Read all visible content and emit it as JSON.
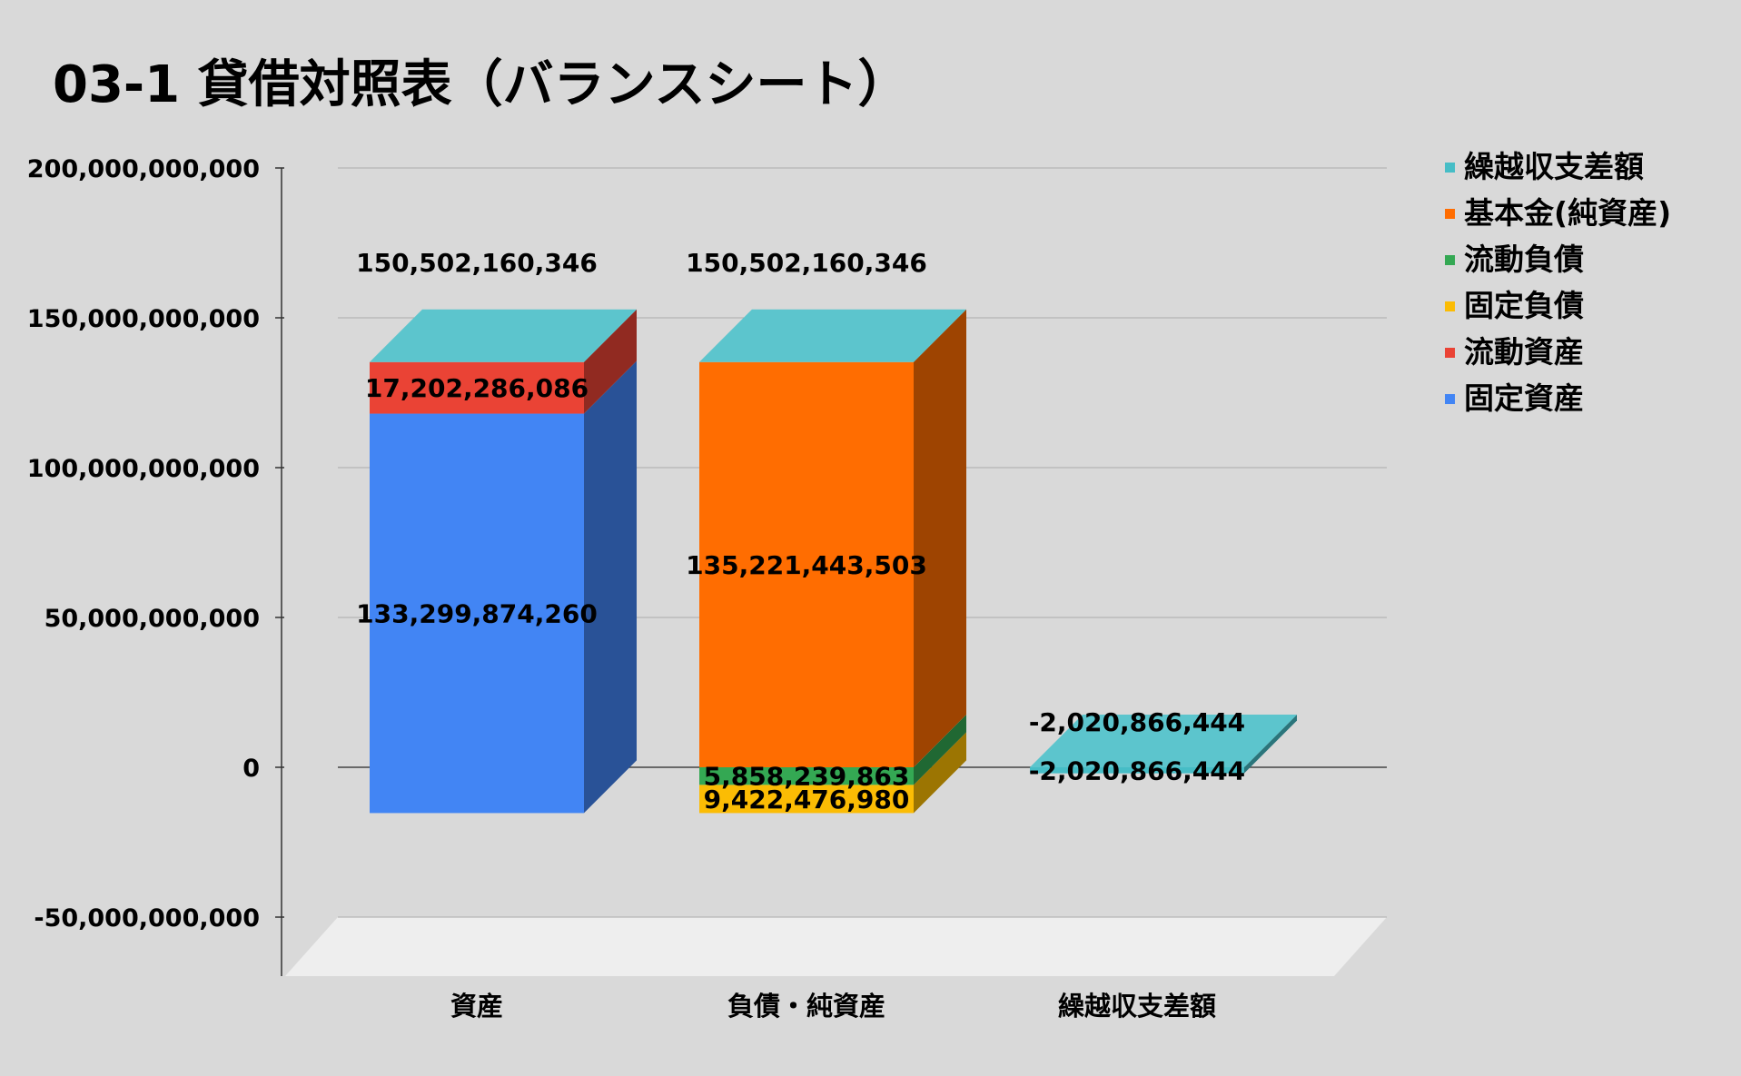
{
  "chart_data": {
    "type": "bar",
    "stacked": true,
    "three_d": true,
    "title": "03-1 貸借対照表（バランスシート）",
    "categories": [
      "資産",
      "負債・純資産",
      "繰越収支差額"
    ],
    "ylim": [
      -50000000000,
      200000000000
    ],
    "yticks": [
      200000000000,
      150000000000,
      100000000000,
      50000000000,
      0,
      -50000000000
    ],
    "ytick_labels": [
      "200,000,000,000",
      "150,000,000,000",
      "100,000,000,000",
      "50,000,000,000",
      "0",
      "-50,000,000,000"
    ],
    "grid": true,
    "legend_position": "right",
    "series": [
      {
        "name": "固定資産",
        "color": "#4285f4",
        "values": [
          133299874260,
          0,
          0
        ],
        "labels": [
          "133,299,874,260",
          "",
          ""
        ]
      },
      {
        "name": "流動資産",
        "color": "#ea4335",
        "values": [
          17202286086,
          0,
          0
        ],
        "labels": [
          "17,202,286,086",
          "",
          ""
        ]
      },
      {
        "name": "固定負債",
        "color": "#fbbc04",
        "values": [
          0,
          9422476980,
          0
        ],
        "labels": [
          "",
          "9,422,476,980",
          ""
        ]
      },
      {
        "name": "流動負債",
        "color": "#34a853",
        "values": [
          0,
          5858239863,
          0
        ],
        "labels": [
          "",
          "5,858,239,863",
          ""
        ]
      },
      {
        "name": "基本金(純資産)",
        "color": "#ff6d01",
        "values": [
          0,
          135221443503,
          0
        ],
        "labels": [
          "",
          "135,221,443,503",
          ""
        ]
      },
      {
        "name": "繰越収支差額",
        "color": "#46bdc6",
        "values": [
          0,
          0,
          -2020866444
        ],
        "labels": [
          "",
          "",
          "-2,020,866,444"
        ]
      }
    ],
    "totals": [
      "150,502,160,346",
      "150,502,160,346",
      "-2,020,866,444"
    ]
  }
}
